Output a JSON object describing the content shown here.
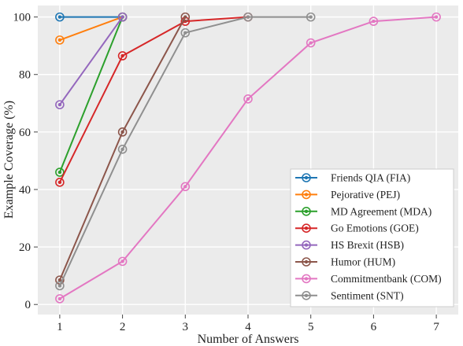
{
  "chart_data": {
    "type": "line",
    "xlabel": "Number of Answers",
    "ylabel": "Example Coverage (%)",
    "xlim": [
      0.65,
      7.35
    ],
    "ylim": [
      -3.5,
      104
    ],
    "xticks": [
      1,
      2,
      3,
      4,
      5,
      6,
      7
    ],
    "yticks": [
      0,
      20,
      40,
      60,
      80,
      100
    ],
    "grid": true,
    "background": "#ebebeb",
    "legend_position": "lower right",
    "series": [
      {
        "name": "Friends QIA (FIA)",
        "color": "#1f77b4",
        "x": [
          1,
          2
        ],
        "values": [
          100,
          100
        ]
      },
      {
        "name": "Pejorative (PEJ)",
        "color": "#ff7f0e",
        "x": [
          1,
          2
        ],
        "values": [
          92,
          100
        ]
      },
      {
        "name": "MD Agreement (MDA)",
        "color": "#2ca02c",
        "x": [
          1,
          2
        ],
        "values": [
          46,
          100
        ]
      },
      {
        "name": "Go Emotions (GOE)",
        "color": "#d62728",
        "x": [
          1,
          2,
          3,
          4
        ],
        "values": [
          42.5,
          86.5,
          98.5,
          100
        ]
      },
      {
        "name": "HS Brexit (HSB)",
        "color": "#9467bd",
        "x": [
          1,
          2
        ],
        "values": [
          69.5,
          100
        ]
      },
      {
        "name": "Humor (HUM)",
        "color": "#8c564b",
        "x": [
          1,
          2,
          3
        ],
        "values": [
          8.5,
          60,
          100
        ]
      },
      {
        "name": "Commitmentbank (COM)",
        "color": "#e377c2",
        "x": [
          1,
          2,
          3,
          4,
          5,
          6,
          7
        ],
        "values": [
          2,
          15,
          41,
          71.5,
          91,
          98.5,
          100
        ]
      },
      {
        "name": "Sentiment (SNT)",
        "color": "#8f8f8f",
        "x": [
          1,
          2,
          3,
          4,
          5
        ],
        "values": [
          6.5,
          54,
          94.5,
          100,
          100
        ]
      }
    ]
  }
}
